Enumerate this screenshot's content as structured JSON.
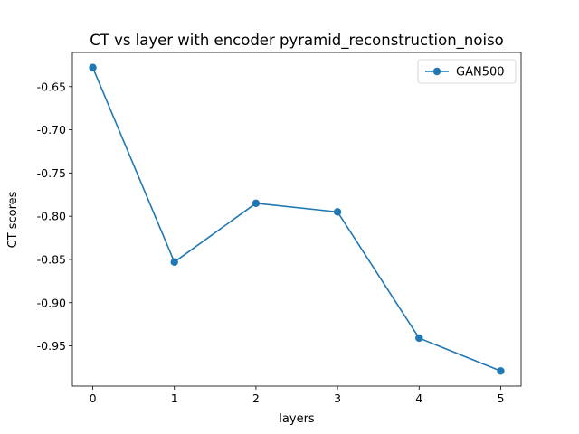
{
  "chart_data": {
    "type": "line",
    "title": "CT vs layer with encoder pyramid_reconstruction_noiso",
    "xlabel": "layers",
    "ylabel": "CT scores",
    "x": [
      0,
      1,
      2,
      3,
      4,
      5
    ],
    "series": [
      {
        "name": "GAN500",
        "values": [
          -0.628,
          -0.853,
          -0.785,
          -0.795,
          -0.941,
          -0.979
        ],
        "color": "#1f77b4",
        "marker": "circle"
      }
    ],
    "xticks": [
      "0",
      "1",
      "2",
      "3",
      "4",
      "5"
    ],
    "yticks": [
      "-0.65",
      "-0.70",
      "-0.75",
      "-0.80",
      "-0.85",
      "-0.90",
      "-0.95"
    ],
    "ytick_values": [
      -0.65,
      -0.7,
      -0.75,
      -0.8,
      -0.85,
      -0.9,
      -0.95
    ],
    "xlim": [
      -0.25,
      5.25
    ],
    "ylim": [
      -0.9965,
      -0.6105
    ],
    "grid": false,
    "legend_position": "top-right"
  }
}
